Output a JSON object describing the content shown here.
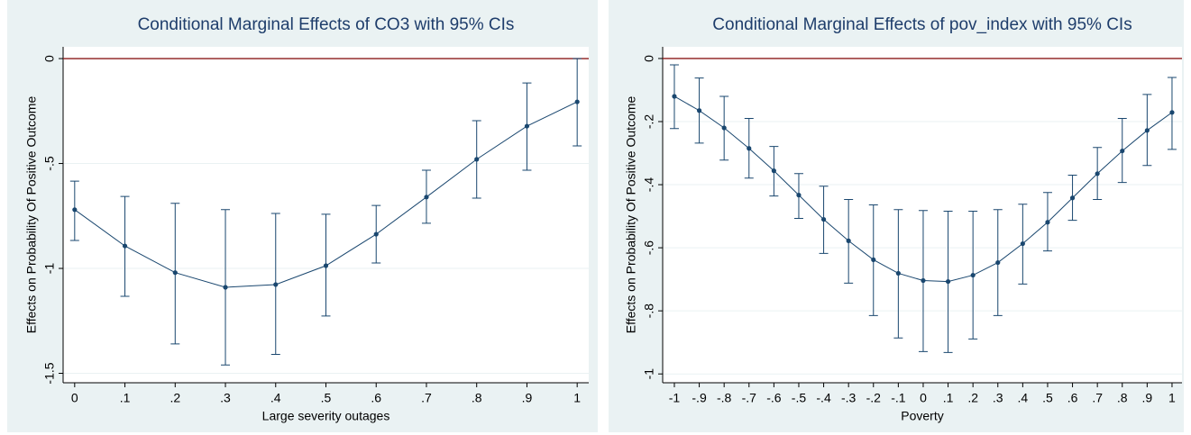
{
  "chart_data": [
    {
      "type": "line",
      "title": "Conditional Marginal Effects of CO3 with 95% CIs",
      "x_label": "Large severity outages",
      "y_label": "Effects on Probability Of Positive Outcome",
      "x": [
        0,
        0.1,
        0.2,
        0.3,
        0.4,
        0.5,
        0.6,
        0.7,
        0.8,
        0.9,
        1
      ],
      "values": [
        -0.72,
        -0.893,
        -1.02,
        -1.09,
        -1.077,
        -0.987,
        -0.837,
        -0.66,
        -0.48,
        -0.322,
        -0.206
      ],
      "ci_low": [
        -0.867,
        -1.133,
        -1.36,
        -1.46,
        -1.41,
        -1.227,
        -0.974,
        -0.785,
        -0.665,
        -0.532,
        -0.416
      ],
      "ci_high": [
        -0.584,
        -0.657,
        -0.69,
        -0.72,
        -0.738,
        -0.742,
        -0.7,
        -0.532,
        -0.296,
        -0.116,
        0
      ],
      "color": "#1a476f",
      "yline": 0,
      "yline_color": "#8b1a1a",
      "grid": true,
      "xlim": [
        -0.023,
        1.023
      ],
      "ylim": [
        -1.545,
        0.056
      ],
      "xticks": [
        0,
        {
          "value": 0.1,
          "label": ".1"
        },
        {
          "value": 0.2,
          "label": ".2"
        },
        {
          "value": 0.3,
          "label": ".3"
        },
        {
          "value": 0.4,
          "label": ".4"
        },
        {
          "value": 0.5,
          "label": ".5"
        },
        {
          "value": 0.6,
          "label": ".6"
        },
        {
          "value": 0.7,
          "label": ".7"
        },
        {
          "value": 0.8,
          "label": ".8"
        },
        {
          "value": 0.9,
          "label": ".9"
        },
        1
      ],
      "yticks": [
        -1.5,
        -1,
        {
          "value": -0.5,
          "label": "-.5"
        },
        0
      ]
    },
    {
      "type": "line",
      "title": "Conditional Marginal Effects of pov_index with 95% CIs",
      "x_label": "Poverty",
      "y_label": "Effects on Probability Of Positive Outcome",
      "x": [
        -1,
        -0.9,
        -0.8,
        -0.7,
        -0.6,
        -0.5,
        -0.4,
        -0.3,
        -0.2,
        -0.1,
        0,
        0.1,
        0.2,
        0.3,
        0.4,
        0.5,
        0.6,
        0.7,
        0.8,
        0.9,
        1
      ],
      "values": [
        -0.12,
        -0.165,
        -0.22,
        -0.285,
        -0.356,
        -0.433,
        -0.51,
        -0.578,
        -0.638,
        -0.681,
        -0.704,
        -0.707,
        -0.687,
        -0.647,
        -0.587,
        -0.519,
        -0.442,
        -0.365,
        -0.293,
        -0.228,
        -0.171
      ],
      "ci_low": [
        -0.222,
        -0.268,
        -0.322,
        -0.379,
        -0.436,
        -0.507,
        -0.618,
        -0.712,
        -0.815,
        -0.886,
        -0.929,
        -0.932,
        -0.889,
        -0.815,
        -0.715,
        -0.61,
        -0.513,
        -0.447,
        -0.393,
        -0.339,
        -0.288
      ],
      "ci_high": [
        -0.02,
        -0.062,
        -0.12,
        -0.19,
        -0.279,
        -0.365,
        -0.405,
        -0.447,
        -0.464,
        -0.479,
        -0.482,
        -0.484,
        -0.484,
        -0.479,
        -0.462,
        -0.425,
        -0.37,
        -0.282,
        -0.19,
        -0.114,
        -0.06
      ],
      "color": "#1a476f",
      "yline": 0,
      "yline_color": "#8b1a1a",
      "grid": true,
      "xlim": [
        -1.047,
        1.04
      ],
      "ylim": [
        -1.028,
        0.037
      ],
      "xticks": [
        -1,
        {
          "value": -0.9,
          "label": "-.9"
        },
        {
          "value": -0.8,
          "label": "-.8"
        },
        {
          "value": -0.7,
          "label": "-.7"
        },
        {
          "value": -0.6,
          "label": "-.6"
        },
        {
          "value": -0.5,
          "label": "-.5"
        },
        {
          "value": -0.4,
          "label": "-.4"
        },
        {
          "value": -0.3,
          "label": "-.3"
        },
        {
          "value": -0.2,
          "label": "-.2"
        },
        {
          "value": -0.1,
          "label": "-.1"
        },
        0,
        {
          "value": 0.1,
          "label": ".1"
        },
        {
          "value": 0.2,
          "label": ".2"
        },
        {
          "value": 0.3,
          "label": ".3"
        },
        {
          "value": 0.4,
          "label": ".4"
        },
        {
          "value": 0.5,
          "label": ".5"
        },
        {
          "value": 0.6,
          "label": ".6"
        },
        {
          "value": 0.7,
          "label": ".7"
        },
        {
          "value": 0.8,
          "label": ".8"
        },
        {
          "value": 0.9,
          "label": ".9"
        },
        1
      ],
      "yticks": [
        -1,
        {
          "value": -0.8,
          "label": "-.8"
        },
        {
          "value": -0.6,
          "label": "-.6"
        },
        {
          "value": -0.4,
          "label": "-.4"
        },
        {
          "value": -0.2,
          "label": "-.2"
        },
        0
      ]
    }
  ]
}
